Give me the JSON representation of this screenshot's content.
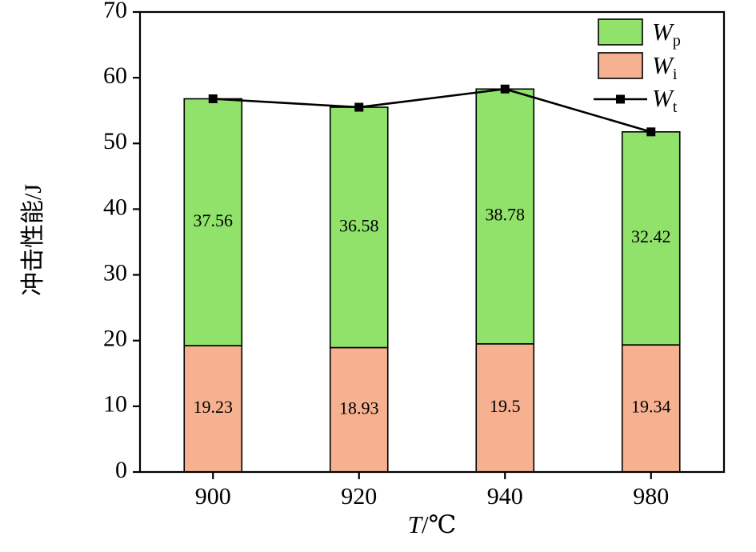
{
  "chart_data": {
    "type": "bar",
    "subtype": "stacked-bar-with-line-overlay",
    "categories": [
      "900",
      "920",
      "940",
      "980"
    ],
    "series": [
      {
        "name": "Wi",
        "label_main": "W",
        "label_sub": "i",
        "color": "#F6B191",
        "values": [
          19.23,
          18.93,
          19.5,
          19.34
        ],
        "value_labels": [
          "19.23",
          "18.93",
          "19.5",
          "19.34"
        ]
      },
      {
        "name": "Wp",
        "label_main": "W",
        "label_sub": "p",
        "color": "#90E26B",
        "values": [
          37.56,
          36.58,
          38.78,
          32.42
        ],
        "value_labels": [
          "37.56",
          "36.58",
          "38.78",
          "32.42"
        ]
      }
    ],
    "line_series": {
      "name": "Wt",
      "label_main": "W",
      "label_sub": "t",
      "color": "#000000",
      "marker": "square",
      "values": [
        56.79,
        55.51,
        58.28,
        51.76
      ]
    },
    "legend_order": [
      "Wp",
      "Wi",
      "Wt"
    ],
    "legend_position": "top-right",
    "title": "",
    "ylabel": "冲击性能/J",
    "xlabel_italic": "T",
    "xlabel_rest": "/℃",
    "ylim": [
      0,
      70
    ],
    "ytick_step": 10,
    "yticks": [
      "0",
      "10",
      "20",
      "30",
      "40",
      "50",
      "60",
      "70"
    ],
    "grid": false,
    "axis_color": "#000000",
    "bar_border_color": "#000000"
  }
}
